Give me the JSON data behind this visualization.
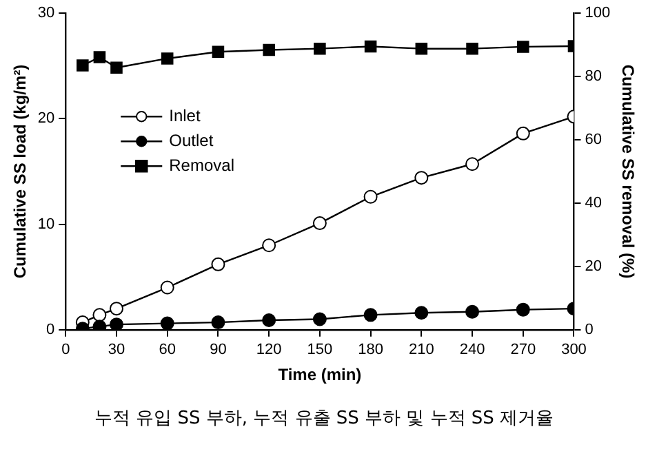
{
  "chart_data": {
    "type": "line",
    "xlabel": "Time (min)",
    "ylabel": "Cumulative SS load (kg/m²)",
    "y2label": "Cumulative SS removal (%)",
    "annotations": [
      "누적 유입 SS 부하, 누적 유출 SS 부하 및 누적 SS 제거율"
    ],
    "x": [
      10,
      20,
      30,
      60,
      90,
      120,
      150,
      180,
      210,
      240,
      270,
      300
    ],
    "series": [
      {
        "name": "Inlet",
        "color": "#ffffff",
        "marker": "circle",
        "values": [
          0.7,
          1.4,
          2.0,
          4.0,
          6.2,
          8.0,
          10.1,
          12.6,
          14.4,
          15.7,
          18.6,
          20.2
        ]
      },
      {
        "name": "Outlet",
        "color": "#000000",
        "marker": "circle",
        "values": [
          0.1,
          0.3,
          0.5,
          0.6,
          0.7,
          0.9,
          1.0,
          1.4,
          1.6,
          1.7,
          1.9,
          2.0
        ]
      },
      {
        "name": "Removal",
        "color": "#000000",
        "marker": "square",
        "axis": "y2",
        "values": [
          83.5,
          86.1,
          82.8,
          85.7,
          87.8,
          88.4,
          88.8,
          89.5,
          88.8,
          88.8,
          89.4,
          89.6
        ]
      }
    ],
    "xlim": [
      0,
      300
    ],
    "xticks": [
      0,
      30,
      60,
      90,
      120,
      150,
      180,
      210,
      240,
      270,
      300
    ],
    "ylim": [
      0,
      30
    ],
    "yticks": [
      0,
      10,
      20,
      30
    ],
    "y2lim": [
      0,
      100
    ],
    "y2ticks": [
      0,
      20,
      40,
      60,
      80,
      100
    ],
    "grid": false,
    "legend": "top left",
    "line_style": "solid"
  }
}
